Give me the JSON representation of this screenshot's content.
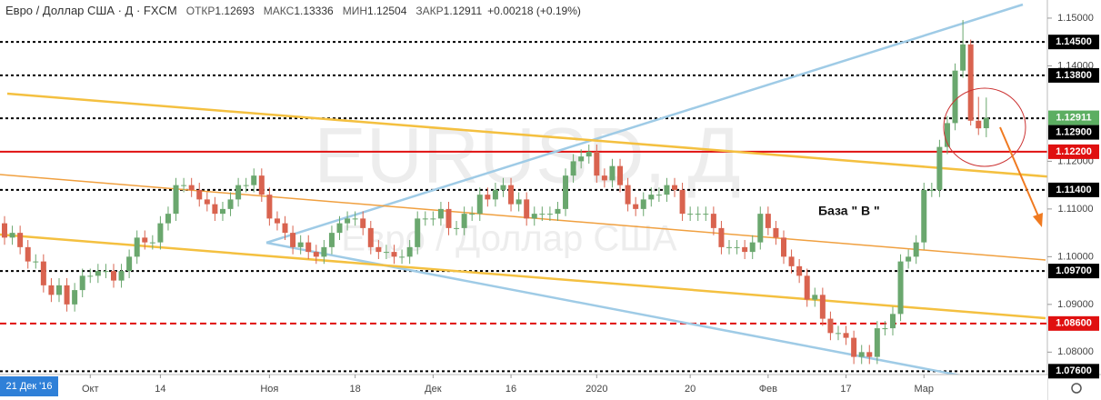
{
  "chart_data": {
    "type": "candlestick",
    "title": "Евро / Доллар США · Д · FXCM",
    "ohlc_header": [
      {
        "label": "ОТКР",
        "value": 1.12693
      },
      {
        "label": "МАКС",
        "value": 1.13336
      },
      {
        "label": "МИН",
        "value": 1.12504
      },
      {
        "label": "ЗАКР",
        "value": 1.12911
      }
    ],
    "change": "+0.00218 (+0.19%)",
    "watermark": "EURUSD, Д",
    "watermark_subtitle": "Евро / Доллар США",
    "annotation": "База \" В \"",
    "cursor_date": "21 Дек '16",
    "categories": [
      null,
      null,
      null,
      null,
      null,
      null,
      null,
      null,
      null,
      null,
      null,
      "Окт",
      null,
      null,
      null,
      null,
      null,
      null,
      null,
      null,
      "14",
      null,
      null,
      null,
      null,
      null,
      null,
      null,
      null,
      null,
      null,
      null,
      null,
      null,
      "Ноя",
      null,
      null,
      null,
      null,
      null,
      null,
      null,
      null,
      null,
      null,
      "18",
      null,
      null,
      null,
      null,
      null,
      null,
      null,
      null,
      null,
      "Дек",
      null,
      null,
      null,
      null,
      null,
      null,
      null,
      null,
      null,
      "16",
      null,
      null,
      null,
      null,
      null,
      null,
      null,
      null,
      null,
      null,
      "2020",
      null,
      null,
      null,
      null,
      null,
      null,
      null,
      null,
      null,
      null,
      null,
      "20",
      null,
      null,
      null,
      null,
      null,
      null,
      null,
      null,
      null,
      "Фев",
      null,
      null,
      null,
      null,
      null,
      null,
      null,
      null,
      null,
      "17",
      null,
      null,
      null,
      null,
      null,
      null,
      null,
      null,
      null,
      "Мар",
      null,
      null,
      null,
      null,
      null,
      null,
      null,
      null
    ],
    "series": [
      {
        "name": "EURUSD",
        "up_color": "#6aa76e",
        "down_color": "#d9634f",
        "ohlc": [
          [
            1.107,
            1.1085,
            1.1025,
            1.104
          ],
          [
            1.104,
            1.1065,
            1.1025,
            1.105
          ],
          [
            1.105,
            1.1065,
            1.1005,
            1.102
          ],
          [
            1.102,
            1.1035,
            1.0975,
            1.099
          ],
          [
            1.099,
            1.1005,
            1.0975,
            1.099
          ],
          [
            1.099,
            1.1005,
            1.0925,
            1.094
          ],
          [
            1.094,
            1.0955,
            1.0905,
            1.092
          ],
          [
            1.092,
            1.0955,
            1.0905,
            1.094
          ],
          [
            1.094,
            1.0955,
            1.0885,
            1.09
          ],
          [
            1.09,
            1.0945,
            1.0885,
            1.093
          ],
          [
            1.093,
            1.0975,
            1.0915,
            1.096
          ],
          [
            1.096,
            1.0975,
            1.0945,
            1.096
          ],
          [
            1.096,
            1.0985,
            1.0945,
            1.097
          ],
          [
            1.097,
            1.0985,
            1.0955,
            1.097
          ],
          [
            1.097,
            1.0985,
            1.0935,
            1.095
          ],
          [
            1.095,
            1.0985,
            1.0935,
            1.097
          ],
          [
            1.097,
            1.1015,
            1.0955,
            1.1
          ],
          [
            1.1,
            1.1055,
            1.0985,
            1.104
          ],
          [
            1.104,
            1.1055,
            1.1015,
            1.103
          ],
          [
            1.103,
            1.1045,
            1.1015,
            1.103
          ],
          [
            1.103,
            1.1085,
            1.1015,
            1.107
          ],
          [
            1.107,
            1.1105,
            1.1055,
            1.109
          ],
          [
            1.109,
            1.1165,
            1.1075,
            1.115
          ],
          [
            1.115,
            1.1165,
            1.1135,
            1.115
          ],
          [
            1.115,
            1.1165,
            1.1125,
            1.114
          ],
          [
            1.114,
            1.1155,
            1.1105,
            1.112
          ],
          [
            1.112,
            1.1135,
            1.1095,
            1.111
          ],
          [
            1.111,
            1.1125,
            1.1075,
            1.109
          ],
          [
            1.109,
            1.1115,
            1.1075,
            1.11
          ],
          [
            1.11,
            1.1135,
            1.1085,
            1.112
          ],
          [
            1.112,
            1.1165,
            1.1105,
            1.115
          ],
          [
            1.115,
            1.1165,
            1.1135,
            1.115
          ],
          [
            1.115,
            1.1185,
            1.1135,
            1.117
          ],
          [
            1.117,
            1.1185,
            1.1115,
            1.113
          ],
          [
            1.113,
            1.1145,
            1.1065,
            1.108
          ],
          [
            1.108,
            1.1095,
            1.1055,
            1.107
          ],
          [
            1.107,
            1.1085,
            1.1035,
            1.105
          ],
          [
            1.105,
            1.1065,
            1.1005,
            1.102
          ],
          [
            1.102,
            1.1045,
            1.1005,
            1.103
          ],
          [
            1.103,
            1.1045,
            1.0995,
            1.101
          ],
          [
            1.101,
            1.1025,
            1.0985,
            1.1
          ],
          [
            1.1,
            1.1035,
            1.0985,
            1.102
          ],
          [
            1.102,
            1.1065,
            1.1005,
            1.105
          ],
          [
            1.105,
            1.1085,
            1.1035,
            1.107
          ],
          [
            1.107,
            1.1095,
            1.1055,
            1.108
          ],
          [
            1.108,
            1.1095,
            1.1065,
            1.108
          ],
          [
            1.108,
            1.1095,
            1.1045,
            1.106
          ],
          [
            1.106,
            1.1075,
            1.1005,
            1.102
          ],
          [
            1.102,
            1.1035,
            1.0995,
            1.101
          ],
          [
            1.101,
            1.1025,
            1.0995,
            1.101
          ],
          [
            1.101,
            1.1025,
            1.0985,
            1.1
          ],
          [
            1.1,
            1.1015,
            1.0985,
            1.1
          ],
          [
            1.1,
            1.1035,
            1.0985,
            1.102
          ],
          [
            1.102,
            1.1095,
            1.1005,
            1.108
          ],
          [
            1.108,
            1.1095,
            1.1065,
            1.108
          ],
          [
            1.108,
            1.1095,
            1.1065,
            1.108
          ],
          [
            1.108,
            1.1115,
            1.1065,
            1.11
          ],
          [
            1.11,
            1.1115,
            1.1045,
            1.106
          ],
          [
            1.106,
            1.1075,
            1.1045,
            1.106
          ],
          [
            1.106,
            1.1105,
            1.1045,
            1.109
          ],
          [
            1.109,
            1.1105,
            1.1075,
            1.109
          ],
          [
            1.109,
            1.1145,
            1.1075,
            1.113
          ],
          [
            1.113,
            1.1145,
            1.1105,
            1.112
          ],
          [
            1.112,
            1.1155,
            1.1105,
            1.114
          ],
          [
            1.114,
            1.1165,
            1.1125,
            1.115
          ],
          [
            1.115,
            1.1165,
            1.1095,
            1.111
          ],
          [
            1.111,
            1.1135,
            1.1095,
            1.112
          ],
          [
            1.112,
            1.1135,
            1.1065,
            1.108
          ],
          [
            1.108,
            1.1105,
            1.1065,
            1.109
          ],
          [
            1.109,
            1.1105,
            1.1075,
            1.109
          ],
          [
            1.109,
            1.1105,
            1.1075,
            1.109
          ],
          [
            1.109,
            1.1115,
            1.1075,
            1.11
          ],
          [
            1.11,
            1.1185,
            1.1085,
            1.117
          ],
          [
            1.117,
            1.1215,
            1.1155,
            1.12
          ],
          [
            1.12,
            1.1225,
            1.1185,
            1.121
          ],
          [
            1.121,
            1.1235,
            1.1195,
            1.122
          ],
          [
            1.122,
            1.1235,
            1.1155,
            1.117
          ],
          [
            1.117,
            1.1185,
            1.1145,
            1.116
          ],
          [
            1.116,
            1.1205,
            1.1145,
            1.119
          ],
          [
            1.119,
            1.1205,
            1.1135,
            1.115
          ],
          [
            1.115,
            1.1165,
            1.1095,
            1.111
          ],
          [
            1.111,
            1.1125,
            1.1085,
            1.11
          ],
          [
            1.11,
            1.1135,
            1.1085,
            1.112
          ],
          [
            1.112,
            1.1145,
            1.1105,
            1.113
          ],
          [
            1.113,
            1.1145,
            1.1115,
            1.113
          ],
          [
            1.113,
            1.1165,
            1.1115,
            1.115
          ],
          [
            1.115,
            1.1165,
            1.1125,
            1.114
          ],
          [
            1.114,
            1.1155,
            1.1075,
            1.109
          ],
          [
            1.109,
            1.1105,
            1.1075,
            1.109
          ],
          [
            1.109,
            1.1105,
            1.1075,
            1.109
          ],
          [
            1.109,
            1.1105,
            1.1075,
            1.109
          ],
          [
            1.109,
            1.1105,
            1.1045,
            1.106
          ],
          [
            1.106,
            1.1075,
            1.1005,
            1.102
          ],
          [
            1.102,
            1.1035,
            1.1005,
            1.102
          ],
          [
            1.102,
            1.1035,
            1.1005,
            1.102
          ],
          [
            1.102,
            1.1035,
            1.0995,
            1.101
          ],
          [
            1.101,
            1.1045,
            1.0995,
            1.103
          ],
          [
            1.103,
            1.1105,
            1.1015,
            1.109
          ],
          [
            1.109,
            1.1105,
            1.1045,
            1.106
          ],
          [
            1.106,
            1.1075,
            1.1025,
            1.104
          ],
          [
            1.104,
            1.1055,
            1.0985,
            1.1
          ],
          [
            1.1,
            1.1015,
            1.0965,
            1.098
          ],
          [
            1.098,
            1.0995,
            1.0945,
            1.096
          ],
          [
            1.096,
            1.0975,
            1.0895,
            1.091
          ],
          [
            1.091,
            1.0935,
            1.0895,
            1.092
          ],
          [
            1.092,
            1.0935,
            1.0855,
            1.087
          ],
          [
            1.087,
            1.0885,
            1.0825,
            1.084
          ],
          [
            1.084,
            1.0855,
            1.0825,
            1.084
          ],
          [
            1.084,
            1.0855,
            1.0815,
            1.083
          ],
          [
            1.083,
            1.0845,
            1.0775,
            1.079
          ],
          [
            1.079,
            1.0815,
            1.0775,
            1.08
          ],
          [
            1.08,
            1.0815,
            1.0775,
            1.079
          ],
          [
            1.079,
            1.0865,
            1.0775,
            1.085
          ],
          [
            1.085,
            1.0865,
            1.0835,
            1.085
          ],
          [
            1.085,
            1.0895,
            1.0835,
            1.088
          ],
          [
            1.088,
            1.1005,
            1.0865,
            1.099
          ],
          [
            1.099,
            1.1015,
            1.0975,
            1.1
          ],
          [
            1.1,
            1.1045,
            1.0985,
            1.103
          ],
          [
            1.103,
            1.1155,
            1.1015,
            1.114
          ],
          [
            1.114,
            1.1155,
            1.1125,
            1.114
          ],
          [
            1.114,
            1.1245,
            1.1125,
            1.123
          ],
          [
            1.123,
            1.1295,
            1.1215,
            1.128
          ],
          [
            1.128,
            1.1405,
            1.1265,
            1.139
          ],
          [
            1.139,
            1.1496,
            1.1375,
            1.1445
          ],
          [
            1.1445,
            1.1455,
            1.1275,
            1.1285
          ],
          [
            1.1285,
            1.1335,
            1.1255,
            1.1269
          ],
          [
            1.12693,
            1.13336,
            1.12504,
            1.12911
          ]
        ]
      }
    ],
    "ylim": [
      1.0753,
      1.1538
    ],
    "yticks": [
      {
        "value": 1.15,
        "label": "1.15000"
      },
      {
        "value": 1.14,
        "label": "1.14000"
      },
      {
        "value": 1.12,
        "label": "1.12000"
      },
      {
        "value": 1.11,
        "label": "1.11000"
      },
      {
        "value": 1.1,
        "label": "1.10000"
      },
      {
        "value": 1.09,
        "label": "1.09000"
      },
      {
        "value": 1.08,
        "label": "1.08000"
      }
    ],
    "last_price": 1.12911,
    "last_price_color": "#5cae62",
    "levels": [
      {
        "value": 1.145,
        "label": "1.14500",
        "color": "#000000",
        "style": "dotted"
      },
      {
        "value": 1.138,
        "label": "1.13800",
        "color": "#000000",
        "style": "dotted"
      },
      {
        "value": 1.129,
        "label": "1.12900",
        "color": "#000000",
        "style": "dotted"
      },
      {
        "value": 1.122,
        "label": "1.12200",
        "color": "#e01010",
        "style": "solid"
      },
      {
        "value": 1.114,
        "label": "1.11400",
        "color": "#000000",
        "style": "dotted"
      },
      {
        "value": 1.097,
        "label": "1.09700",
        "color": "#000000",
        "style": "dotted"
      },
      {
        "value": 1.086,
        "label": "1.08600",
        "color": "#e01010",
        "style": "dashed"
      },
      {
        "value": 1.076,
        "label": "1.07600",
        "color": "#000000",
        "style": "dotted"
      }
    ]
  }
}
